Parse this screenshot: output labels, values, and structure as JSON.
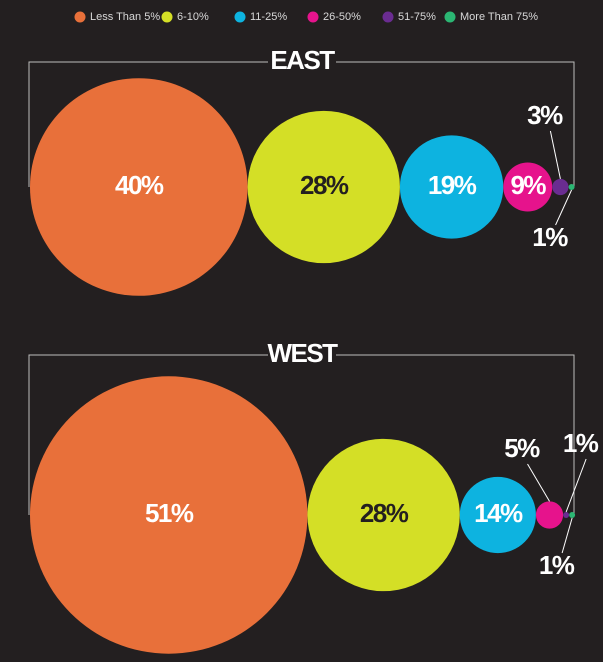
{
  "legend": {
    "categories": [
      "Less Than 5%",
      "6-10%",
      "11-25%",
      "26-50%",
      "51-75%",
      "More Than 75%"
    ],
    "colors": [
      "#e8703a",
      "#d4df26",
      "#0db3e0",
      "#e6138c",
      "#6a2c91",
      "#2bb673"
    ]
  },
  "chart_data": [
    {
      "type": "bubble",
      "title": "EAST",
      "values": [
        40,
        28,
        19,
        9,
        3,
        1
      ],
      "value_labels": [
        "40%",
        "28%",
        "19%",
        "9%",
        "3%",
        "1%"
      ]
    },
    {
      "type": "bubble",
      "title": "WEST",
      "values": [
        51,
        28,
        14,
        5,
        1,
        1
      ],
      "value_labels": [
        "51%",
        "28%",
        "14%",
        "5%",
        "1%",
        "1%"
      ]
    }
  ]
}
